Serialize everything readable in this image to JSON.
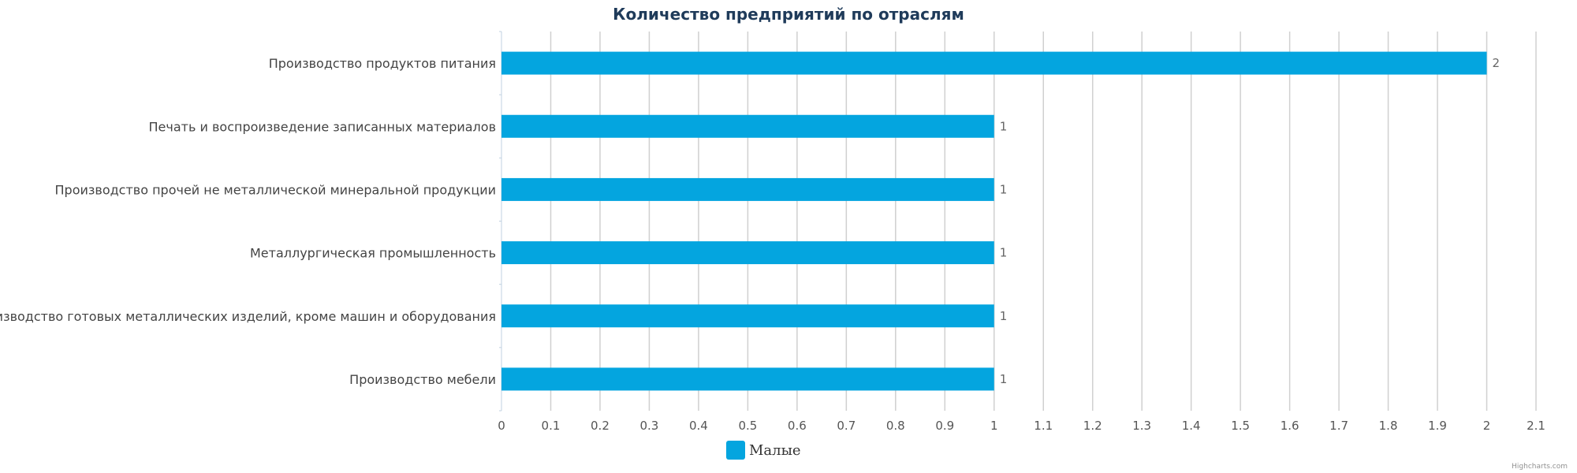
{
  "chart_data": {
    "type": "bar",
    "orientation": "horizontal",
    "title": "Количество предприятий по отраслям",
    "categories": [
      "Производство продуктов питания",
      "Печать и воспроизведение записанных материалов",
      "Производство прочей не металлической минеральной продукции",
      "Металлургическая промышленность",
      "Производство готовых металлических изделий, кроме машин и оборудования",
      "Производство мебели"
    ],
    "series": [
      {
        "name": "Малые",
        "values": [
          2,
          1,
          1,
          1,
          1,
          1
        ],
        "color": "#04a5df"
      }
    ],
    "x_ticks": [
      "0",
      "0.1",
      "0.2",
      "0.3",
      "0.4",
      "0.5",
      "0.6",
      "0.7",
      "0.8",
      "0.9",
      "1",
      "1.1",
      "1.2",
      "1.3",
      "1.4",
      "1.5",
      "1.6",
      "1.7",
      "1.8",
      "1.9",
      "2",
      "2.1"
    ],
    "xlim": [
      0,
      2.1
    ],
    "grid": true,
    "legend_position": "bottom-center",
    "credits": "Highcharts.com"
  }
}
